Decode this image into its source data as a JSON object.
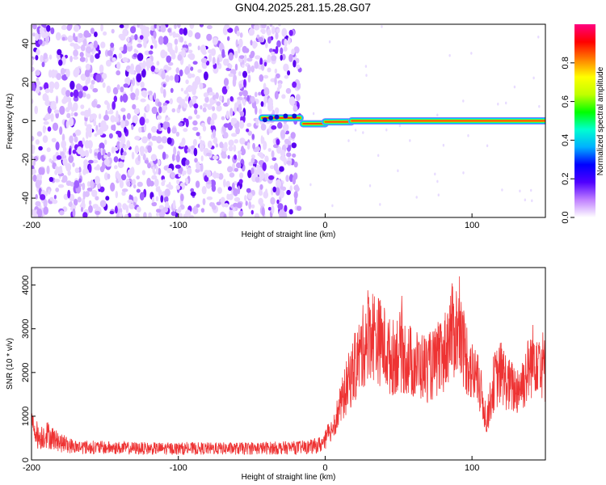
{
  "title": "GN04.2025.281.15.28.G07",
  "chart_data": [
    {
      "type": "heatmap",
      "xlabel": "Height of straight line (km)",
      "ylabel": "Frequency (Hz)",
      "xlim": [
        -200,
        150
      ],
      "ylim": [
        -50,
        50
      ],
      "xticks": [
        "-200",
        "-100",
        "0",
        "100"
      ],
      "yticks": [
        "-40",
        "-20",
        "0",
        "20",
        "40"
      ],
      "colorbar": {
        "label": "Normalized spectral amplitude",
        "range": [
          0,
          1
        ],
        "ticks": [
          "0.0",
          "0.2",
          "0.4",
          "0.6",
          "0.8"
        ],
        "colors": [
          "#ffffff",
          "#c080ff",
          "#5000ff",
          "#0000ff",
          "#00b0ff",
          "#00ffd0",
          "#00ff00",
          "#c0ff00",
          "#ffff00",
          "#ff8000",
          "#ff0000",
          "#ff0080"
        ]
      },
      "noise_region_x": [
        -200,
        -17
      ],
      "line_segments": [
        {
          "x": [
            -43,
            -17
          ],
          "frequency": 1.5
        },
        {
          "x": [
            -15,
            0
          ],
          "frequency": -1.5
        },
        {
          "x": [
            0,
            18
          ],
          "frequency": -0.5
        },
        {
          "x": [
            18,
            150
          ],
          "frequency": 0
        }
      ],
      "grid": false
    },
    {
      "type": "line",
      "xlabel": "Height of straight line (km)",
      "ylabel": "SNR (10 * v/v)",
      "xlim": [
        -200,
        150
      ],
      "ylim": [
        0,
        4400
      ],
      "xticks": [
        "-200",
        "-100",
        "0",
        "100"
      ],
      "yticks": [
        "0",
        "1000",
        "2000",
        "3000",
        "4000"
      ],
      "series_color": "#ee3333",
      "x": [
        -200,
        -195,
        -190,
        -180,
        -170,
        -150,
        -120,
        -100,
        -80,
        -60,
        -40,
        -20,
        -10,
        -5,
        0,
        5,
        10,
        15,
        20,
        25,
        30,
        35,
        40,
        45,
        50,
        60,
        70,
        80,
        85,
        90,
        95,
        100,
        105,
        110,
        115,
        120,
        125,
        130,
        135,
        140,
        145,
        150
      ],
      "y": [
        850,
        500,
        600,
        380,
        300,
        280,
        260,
        260,
        260,
        260,
        270,
        280,
        300,
        330,
        420,
        750,
        1200,
        1700,
        2100,
        2500,
        3000,
        2800,
        2600,
        2300,
        2500,
        2200,
        2100,
        2300,
        2900,
        3000,
        2500,
        2000,
        1700,
        900,
        1800,
        2000,
        1700,
        1600,
        1800,
        2200,
        2500,
        2000
      ],
      "grid": false
    }
  ]
}
